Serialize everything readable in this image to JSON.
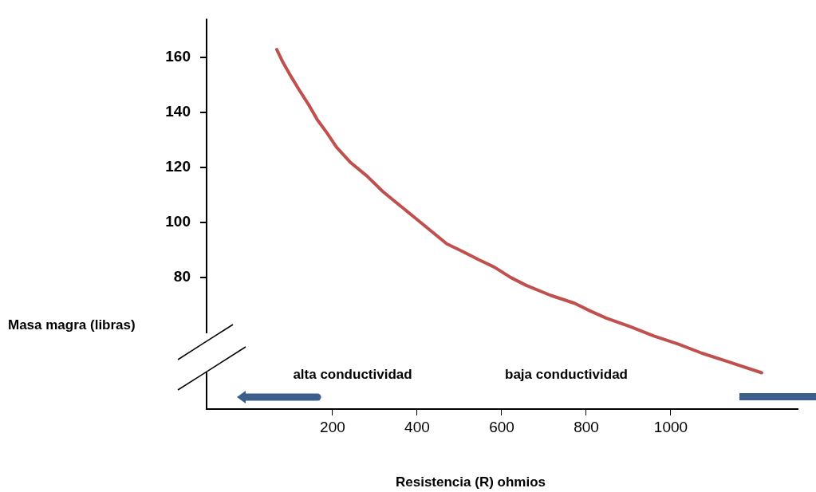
{
  "chart_data": {
    "type": "line",
    "xlabel": "Resistencia (R) ohmios",
    "ylabel": "Masa magra (libras)",
    "annotations": [
      "alta conductividad",
      "baja conductividad"
    ],
    "x": [
      68,
      83,
      102,
      121,
      145,
      164,
      187,
      209,
      243,
      281,
      319,
      357,
      394,
      432,
      470,
      508,
      545,
      583,
      621,
      658,
      715,
      772,
      809,
      847,
      904,
      960,
      1017,
      1074,
      1130,
      1215
    ],
    "series": [
      {
        "color": "#c0504d",
        "values": [
          162.8,
          158,
          152.9,
          148.1,
          142.3,
          137.2,
          132.4,
          127.3,
          121.6,
          116.8,
          111.1,
          106.3,
          101.7,
          96.9,
          92.1,
          89.3,
          86.4,
          83.6,
          79.9,
          77,
          73.4,
          70.5,
          67.7,
          65.1,
          62,
          58.6,
          55.7,
          52.3,
          49.5,
          45.2
        ]
      }
    ],
    "xlim": [
      -98,
      1300
    ],
    "ylim": [
      32,
      174
    ],
    "xticks": [
      200,
      400,
      600,
      800,
      1000
    ],
    "yticks": [
      80,
      100,
      120,
      140,
      160
    ],
    "marker": "none",
    "line_style": "solid"
  }
}
